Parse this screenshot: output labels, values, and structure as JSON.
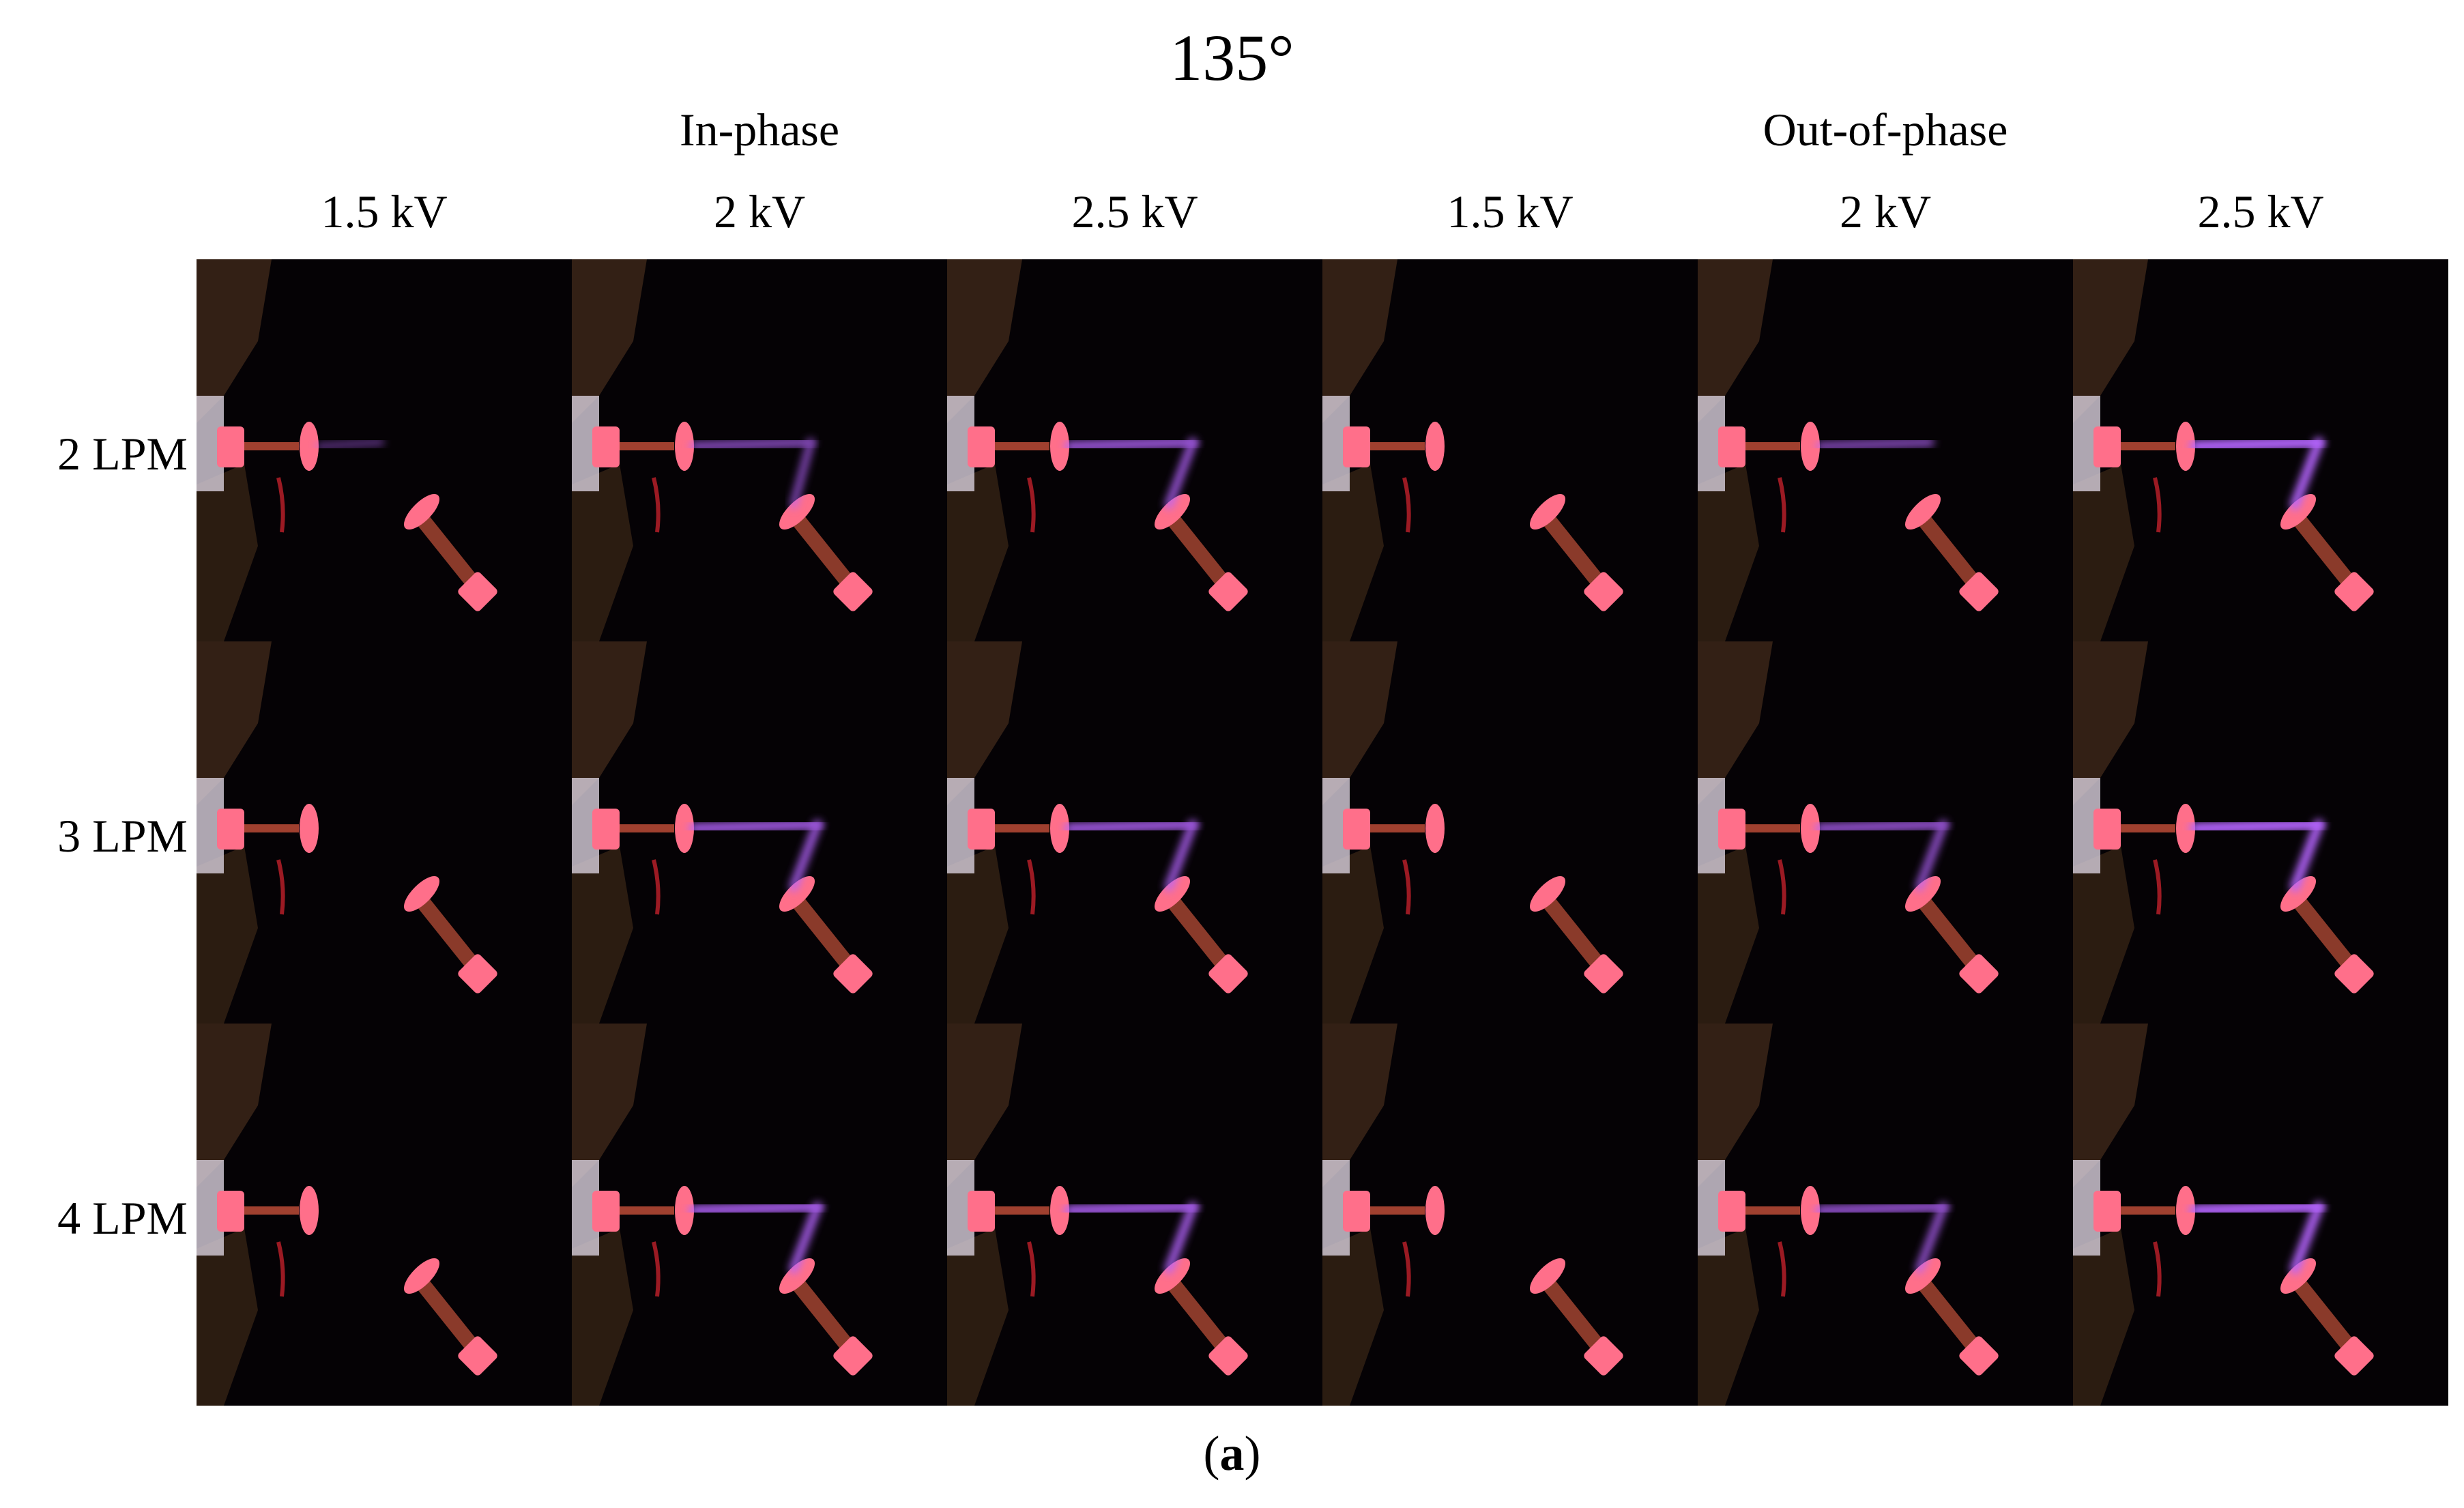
{
  "figure": {
    "title": "135°",
    "groups": [
      {
        "label": "In-phase"
      },
      {
        "label": "Out-of-phase"
      }
    ],
    "columns": [
      "1.5 kV",
      "2 kV",
      "2.5 kV",
      "1.5 kV",
      "2 kV",
      "2.5 kV"
    ],
    "rows": [
      "2 LPM",
      "3 LPM",
      "4 LPM"
    ],
    "caption": {
      "open": "(",
      "letter": "a",
      "close": ")"
    }
  },
  "colors": {
    "background": "#ffffff",
    "photo_background": "#050205",
    "electrode_glow": "#ff6f8a",
    "plasma_glow": "#b565ff",
    "wire": "#c0202a",
    "fixture": "#5a3b22"
  }
}
